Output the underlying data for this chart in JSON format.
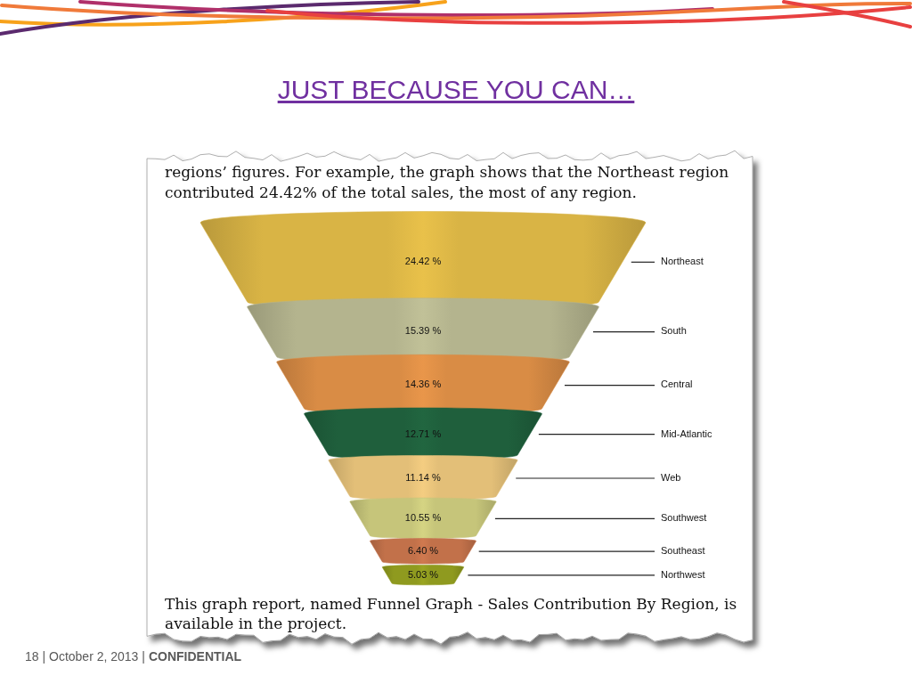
{
  "chart_data": {
    "type": "other",
    "title": "JUST BECAUSE YOU CAN…",
    "subtitle": "regions’ figures. For example, the graph shows that the Northeast region contributed 24.42% of the total sales, the most of any region.",
    "categories": [
      "Northeast",
      "South",
      "Central",
      "Mid-Atlantic",
      "Web",
      "Southwest",
      "Southeast",
      "Northwest"
    ],
    "values": [
      24.42,
      15.39,
      14.36,
      12.71,
      11.14,
      10.55,
      6.4,
      5.03
    ],
    "colors": [
      "#d9b445",
      "#b4b48e",
      "#d98c45",
      "#1f5f3c",
      "#e3bf78",
      "#c6c57a",
      "#c2714a",
      "#8f9a1f"
    ],
    "value_labels": [
      "24.42 %",
      "15.39 %",
      "14.36 %",
      "12.71 %",
      "11.14 %",
      "10.55 %",
      "6.40 %",
      "5.03 %"
    ],
    "annotations": [
      "This graph report, named Funnel Graph - Sales Contribution By Region, is available in the project.",
      "18 | October 2, 2013 |",
      "CONFIDENTIAL"
    ]
  }
}
